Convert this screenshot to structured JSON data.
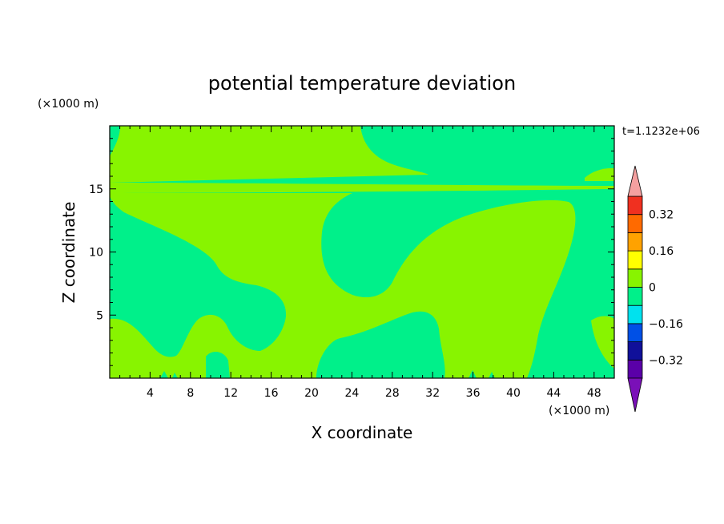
{
  "chart_data": {
    "type": "heatmap",
    "title": "potential temperature deviation",
    "xlabel": "X coordinate",
    "ylabel": "Z coordinate",
    "x_unit": "(×1000 m)",
    "y_unit": "(×1000 m)",
    "time_label": "t=1.1232e+06",
    "xlim": [
      0,
      50
    ],
    "ylim": [
      0,
      20
    ],
    "x_ticks": [
      4,
      8,
      12,
      16,
      20,
      24,
      28,
      32,
      36,
      40,
      44,
      48
    ],
    "x_tick_labels": [
      "4",
      "8",
      "12",
      "16",
      "20",
      "24",
      "28",
      "32",
      "36",
      "40",
      "44",
      "48"
    ],
    "y_ticks": [
      5,
      10,
      15
    ],
    "y_tick_labels": [
      "5",
      "10",
      "15"
    ],
    "colorbar": {
      "levels": [
        -0.4,
        -0.32,
        -0.24,
        -0.16,
        -0.08,
        0,
        0.08,
        0.16,
        0.24,
        0.32,
        0.4
      ],
      "tick_values": [
        -0.32,
        -0.16,
        0,
        0.16,
        0.32
      ],
      "tick_labels": [
        "−0.32",
        "−0.16",
        "0",
        "0.16",
        "0.32"
      ],
      "colors": [
        "#5a00a8",
        "#10109a",
        "#0050e6",
        "#00e2ee",
        "#00f08a",
        "#88f400",
        "#ffff00",
        "#ffa200",
        "#ff6a00",
        "#f03020"
      ],
      "under_color": "#7a10b8",
      "over_color": "#f4a0a0"
    },
    "background_level": "-0.08 to 0",
    "regions": [
      {
        "level": "0 to 0.08",
        "color": "#88f400",
        "description": "large positive band across lower-middle domain"
      },
      {
        "level": "-0.08 to 0",
        "color": "#00f08a",
        "description": "background"
      }
    ]
  }
}
